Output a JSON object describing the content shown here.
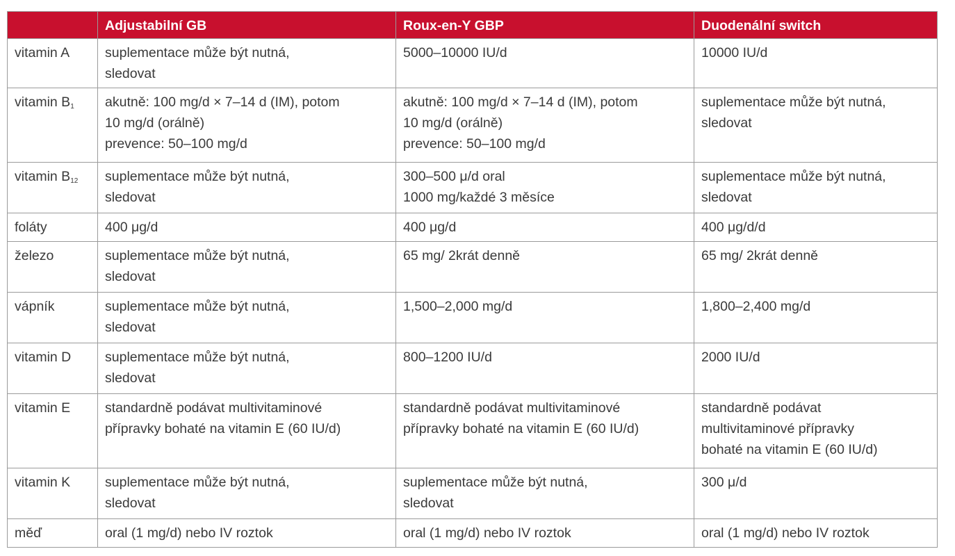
{
  "table": {
    "headers": [
      "",
      "Adjustabilní GB",
      "Roux-en-Y GBP",
      "Duodenální switch"
    ],
    "rows": [
      {
        "nutrient": "vitamin A",
        "nutrient_sub": "",
        "cells": [
          [
            "suplementace může být nutná,",
            "sledovat"
          ],
          [
            "5000–10000 IU/d"
          ],
          [
            "10000 IU/d"
          ]
        ]
      },
      {
        "nutrient": "vitamin B",
        "nutrient_sub": "1",
        "cells": [
          [
            "akutně: 100 mg/d × 7–14 d (IM), potom",
            "10 mg/d (orálně)",
            "prevence: 50–100 mg/d"
          ],
          [
            "akutně: 100 mg/d × 7–14 d  (IM), potom",
            "10 mg/d (orálně)",
            "prevence: 50–100 mg/d"
          ],
          [
            "suplementace může být nutná,",
            "sledovat"
          ]
        ]
      },
      {
        "nutrient": "vitamin B",
        "nutrient_sub": "12",
        "cells": [
          [
            "suplementace může být nutná,",
            "sledovat"
          ],
          [
            "300–500 μ/d oral",
            "1000 mg/každé 3 měsíce"
          ],
          [
            "suplementace může být nutná,",
            "sledovat"
          ]
        ]
      },
      {
        "nutrient": "foláty",
        "nutrient_sub": "",
        "cells": [
          [
            "400 μg/d"
          ],
          [
            "400  μg/d"
          ],
          [
            "400  μg/d/d"
          ]
        ]
      },
      {
        "nutrient": "železo",
        "nutrient_sub": "",
        "cells": [
          [
            "suplementace může být nutná,",
            "sledovat"
          ],
          [
            "65 mg/ 2krát denně"
          ],
          [
            "65 mg/ 2krát denně"
          ]
        ]
      },
      {
        "nutrient": "vápník",
        "nutrient_sub": "",
        "cells": [
          [
            "suplementace může být nutná,",
            "sledovat"
          ],
          [
            "1,500–2,000 mg/d"
          ],
          [
            "1,800–2,400 mg/d"
          ]
        ]
      },
      {
        "nutrient": "vitamin D",
        "nutrient_sub": "",
        "cells": [
          [
            "suplementace může být nutná,",
            "sledovat"
          ],
          [
            "800–1200 IU/d"
          ],
          [
            "2000 IU/d"
          ]
        ]
      },
      {
        "nutrient": "vitamin E",
        "nutrient_sub": "",
        "cells": [
          [
            "standardně podávat multivitaminové",
            "přípravky bohaté na vitamin E (60 IU/d)"
          ],
          [
            "standardně podávat multivitaminové",
            "přípravky bohaté na vitamin E (60 IU/d)"
          ],
          [
            "standardně podávat",
            "multivitaminové přípravky",
            "bohaté na vitamin E (60 IU/d)"
          ]
        ]
      },
      {
        "nutrient": "vitamin K",
        "nutrient_sub": "",
        "cells": [
          [
            "suplementace může být nutná,",
            "sledovat"
          ],
          [
            "suplementace může být nutná,",
            "sledovat"
          ],
          [
            "300 μ/d"
          ]
        ]
      },
      {
        "nutrient": "měď",
        "nutrient_sub": "",
        "cells": [
          [
            "oral (1 mg/d) nebo IV roztok"
          ],
          [
            "oral (1 mg/d) nebo IV roztok"
          ],
          [
            "oral (1 mg/d) nebo IV roztok"
          ]
        ]
      }
    ]
  },
  "colors": {
    "header_bg": "#c8102e",
    "header_text": "#ffffff",
    "border": "#9a9a9a",
    "body_text": "#3a3a3a"
  }
}
